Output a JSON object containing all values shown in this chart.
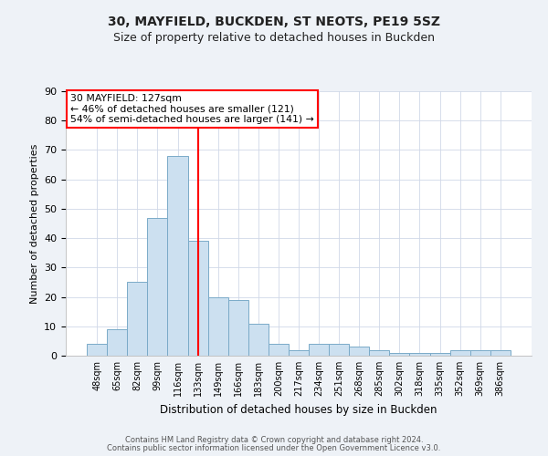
{
  "title1": "30, MAYFIELD, BUCKDEN, ST NEOTS, PE19 5SZ",
  "title2": "Size of property relative to detached houses in Buckden",
  "xlabel": "Distribution of detached houses by size in Buckden",
  "ylabel": "Number of detached properties",
  "categories": [
    "48sqm",
    "65sqm",
    "82sqm",
    "99sqm",
    "116sqm",
    "133sqm",
    "149sqm",
    "166sqm",
    "183sqm",
    "200sqm",
    "217sqm",
    "234sqm",
    "251sqm",
    "268sqm",
    "285sqm",
    "302sqm",
    "318sqm",
    "335sqm",
    "352sqm",
    "369sqm",
    "386sqm"
  ],
  "values": [
    4,
    9,
    25,
    47,
    68,
    39,
    20,
    19,
    11,
    4,
    2,
    4,
    4,
    3,
    2,
    1,
    1,
    1,
    2,
    2,
    2
  ],
  "bar_color": "#cce0f0",
  "bar_edge_color": "#7aaac8",
  "vline_x": 5.0,
  "vline_color": "red",
  "annotation_text": "30 MAYFIELD: 127sqm\n← 46% of detached houses are smaller (121)\n54% of semi-detached houses are larger (141) →",
  "annotation_box_color": "white",
  "annotation_box_edge": "red",
  "ylim": [
    0,
    90
  ],
  "yticks": [
    0,
    10,
    20,
    30,
    40,
    50,
    60,
    70,
    80,
    90
  ],
  "footer1": "Contains HM Land Registry data © Crown copyright and database right 2024.",
  "footer2": "Contains public sector information licensed under the Open Government Licence v3.0.",
  "bg_color": "#eef2f7",
  "plot_bg_color": "#ffffff",
  "grid_color": "#d0d8e8",
  "title1_fontsize": 10,
  "title2_fontsize": 9
}
